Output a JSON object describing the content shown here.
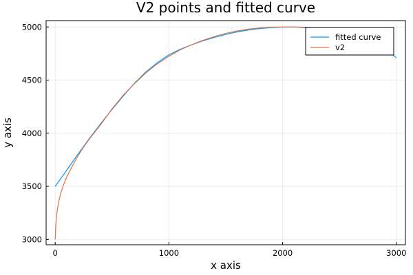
{
  "chart_data": {
    "type": "line",
    "title": "V2 points and fitted curve",
    "xlabel": "x axis",
    "ylabel": "y axis",
    "xlim": [
      -80,
      3080
    ],
    "ylim": [
      2950,
      5060
    ],
    "xticks": [
      0,
      1000,
      2000,
      3000
    ],
    "yticks": [
      3000,
      3500,
      4000,
      4500,
      5000
    ],
    "grid": true,
    "legend_position": "top-right",
    "series": [
      {
        "name": "fitted curve",
        "color": "#009af9",
        "x": [
          0,
          100,
          200,
          300,
          400,
          500,
          600,
          700,
          800,
          900,
          1000,
          1100,
          1200,
          1300,
          1400,
          1500,
          1600,
          1700,
          1800,
          1900,
          2000,
          2100,
          2200,
          2300,
          2400,
          2500,
          2600,
          2700,
          2800,
          2900,
          3000
        ],
        "y": [
          3500,
          3650,
          3802,
          3950,
          4090,
          4224,
          4352,
          4474,
          4580,
          4665,
          4738,
          4790,
          4832,
          4870,
          4902,
          4930,
          4954,
          4972,
          4985,
          4994,
          4999,
          5000,
          4998,
          4992,
          4982,
          4968,
          4948,
          4917,
          4870,
          4800,
          4710
        ]
      },
      {
        "name": "v2",
        "color": "#e26f46",
        "x": [
          0,
          2,
          5,
          10,
          20,
          35,
          50,
          75,
          100,
          150,
          200,
          250,
          300,
          400,
          500,
          600,
          700,
          800,
          900,
          1000,
          1100,
          1200,
          1300,
          1400,
          1500,
          1600,
          1700,
          1800,
          1900,
          2000,
          2050,
          2100,
          2150,
          2200,
          2250
        ],
        "y": [
          3000,
          3060,
          3130,
          3200,
          3290,
          3375,
          3440,
          3520,
          3585,
          3690,
          3785,
          3870,
          3945,
          4080,
          4230,
          4360,
          4470,
          4570,
          4655,
          4725,
          4785,
          4833,
          4875,
          4910,
          4940,
          4963,
          4980,
          4992,
          4998,
          5000,
          5000,
          4999,
          4997,
          4993,
          4988
        ]
      }
    ]
  }
}
